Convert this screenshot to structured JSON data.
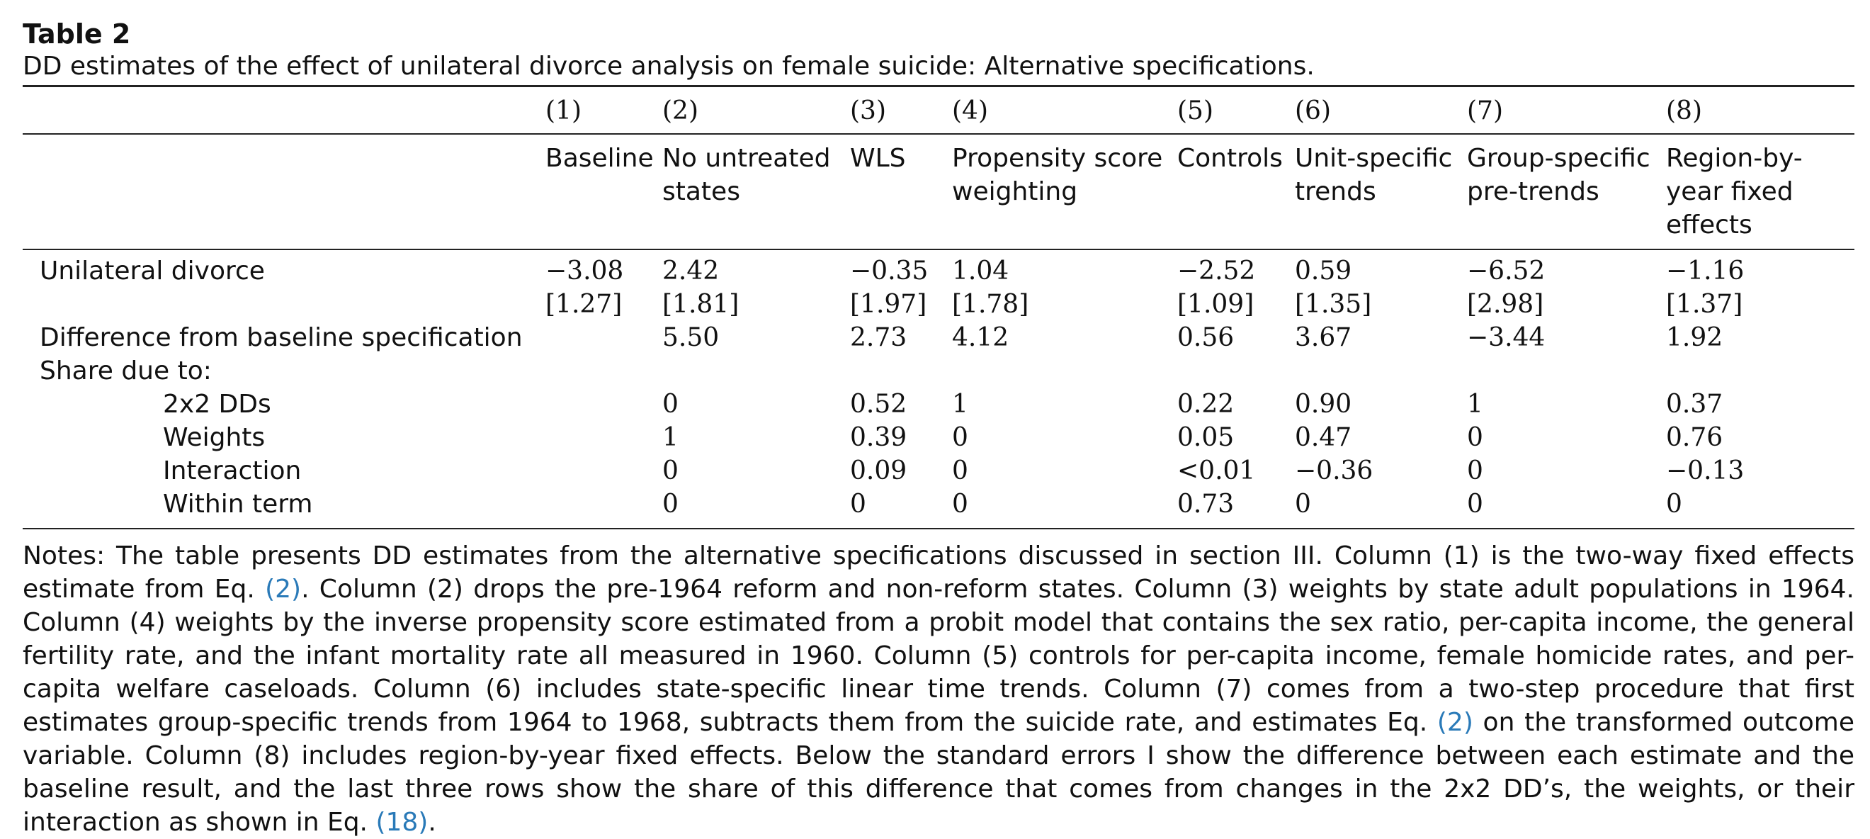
{
  "table_label": "Table 2",
  "caption": "DD estimates of the effect of unilateral divorce analysis on female suicide: Alternative specifications.",
  "column_numbers": [
    "(1)",
    "(2)",
    "(3)",
    "(4)",
    "(5)",
    "(6)",
    "(7)",
    "(8)"
  ],
  "column_names": [
    "Baseline",
    "No untreated states",
    "WLS",
    "Propensity score weighting",
    "Controls",
    "Unit-specific trends",
    "Group-specific pre-trends",
    "Region-by-year fixed effects"
  ],
  "rows": {
    "unilateral": {
      "label": "Unilateral divorce",
      "values": [
        "−3.08",
        "2.42",
        "−0.35",
        "1.04",
        "−2.52",
        "0.59",
        "−6.52",
        "−1.16"
      ]
    },
    "se": {
      "label": "",
      "values": [
        "[1.27]",
        "[1.81]",
        "[1.97]",
        "[1.78]",
        "[1.09]",
        "[1.35]",
        "[2.98]",
        "[1.37]"
      ]
    },
    "diff": {
      "label": "Difference from baseline specification",
      "values": [
        "",
        "5.50",
        "2.73",
        "4.12",
        "0.56",
        "3.67",
        "−3.44",
        "1.92"
      ]
    },
    "share": {
      "label": "Share due to:",
      "values": [
        "",
        "",
        "",
        "",
        "",
        "",
        "",
        ""
      ]
    },
    "dd": {
      "label": "2x2 DDs",
      "values": [
        "",
        "0",
        "0.52",
        "1",
        "0.22",
        "0.90",
        "1",
        "0.37"
      ]
    },
    "weights": {
      "label": "Weights",
      "values": [
        "",
        "1",
        "0.39",
        "0",
        "0.05",
        "0.47",
        "0",
        "0.76"
      ]
    },
    "interaction": {
      "label": "Interaction",
      "values": [
        "",
        "0",
        "0.09",
        "0",
        "<0.01",
        "−0.36",
        "0",
        "−0.13"
      ]
    },
    "within": {
      "label": "Within term",
      "values": [
        "",
        "0",
        "0",
        "0",
        "0.73",
        "0",
        "0",
        "0"
      ]
    }
  },
  "notes": {
    "part1": "Notes: The table presents DD estimates from the alternative specifications discussed in section III. Column (1) is the two-way fixed effects estimate from Eq. ",
    "ref1": "(2)",
    "part2": ". Column (2) drops the pre-1964 reform and non-reform states. Column (3) weights by state adult populations in 1964. Column (4) weights by the inverse propensity score estimated from a probit model that contains the sex ratio, per-capita income, the general fertility rate, and the infant mortality rate all measured in 1960. Column (5) controls for per-capita income, female homicide rates, and per-capita welfare caseloads. Column (6) includes state-specific linear time trends. Column (7) comes from a two-step procedure that first estimates group-specific trends from 1964 to 1968, subtracts them from the suicide rate, and estimates Eq. ",
    "ref2": "(2)",
    "part3": " on the transformed outcome variable. Column (8) includes region-by-year fixed effects. Below the standard errors I show the difference between each estimate and the baseline result, and the last three rows show the share of this difference that comes from changes in the 2x2 DD’s, the weights, or their interaction as shown in Eq. ",
    "ref3": "(18)",
    "part4": "."
  },
  "colors": {
    "link": "#2a7ab8",
    "text": "#111111"
  }
}
